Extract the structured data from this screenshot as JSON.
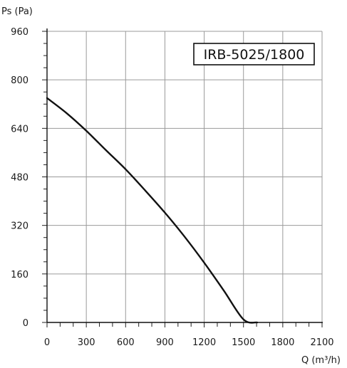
{
  "chart_data": {
    "type": "line",
    "model_label": "IRB-5025/1800",
    "ylabel": "Ps (Pa)",
    "xlabel": "Q (m³/h)",
    "xlim": [
      0,
      2100
    ],
    "ylim": [
      0,
      960
    ],
    "x_ticks": [
      0,
      300,
      600,
      900,
      1200,
      1500,
      1800,
      2100
    ],
    "y_ticks": [
      0,
      160,
      320,
      480,
      640,
      800,
      960
    ],
    "x_minor_step": 100,
    "y_minor_step": 40,
    "grid": true,
    "series": [
      {
        "x": [
          0,
          150,
          300,
          450,
          600,
          750,
          900,
          1050,
          1200,
          1350,
          1500,
          1605
        ],
        "y": [
          740,
          690,
          632,
          568,
          505,
          435,
          362,
          283,
          197,
          105,
          10,
          0
        ]
      }
    ]
  }
}
